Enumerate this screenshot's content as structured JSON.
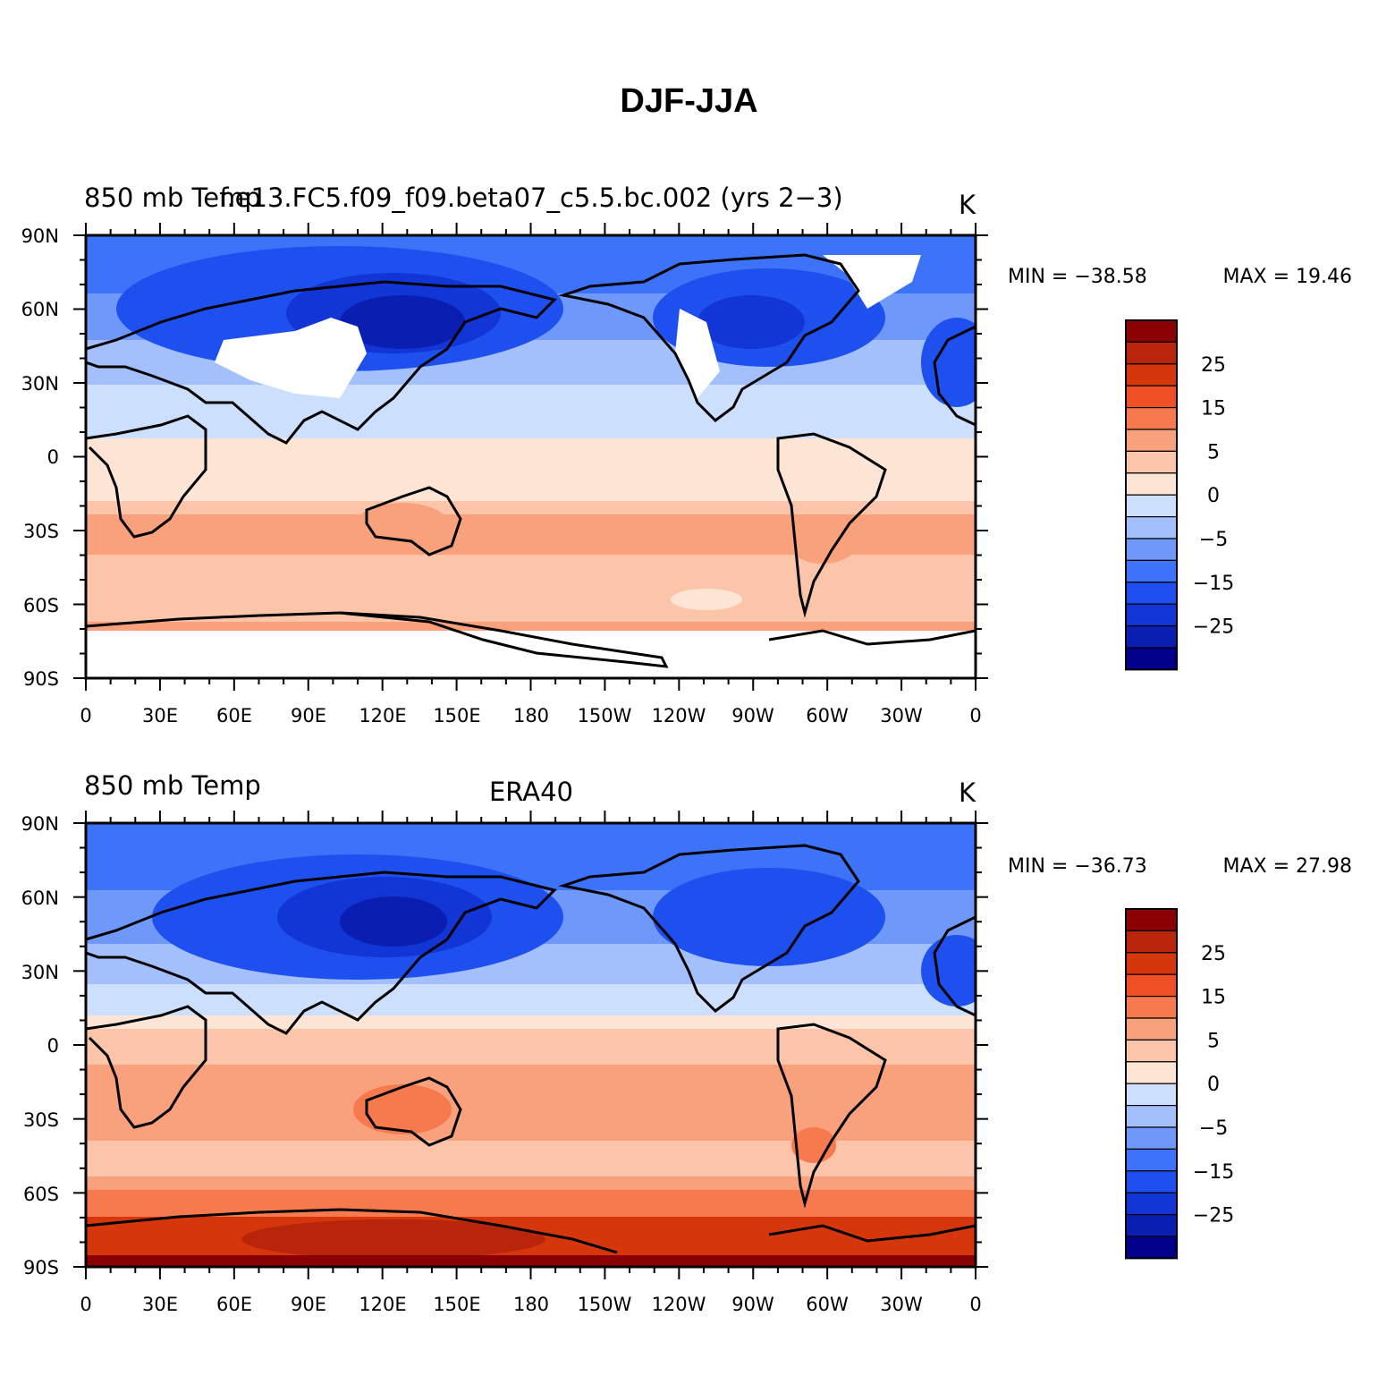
{
  "title": "DJF-JJA",
  "colorbar": {
    "colors": [
      "#00008B",
      "#0A1FB0",
      "#1235D6",
      "#1E50F0",
      "#3C73F8",
      "#6E98FA",
      "#A3C0FC",
      "#CCE0FD",
      "#FDE5D6",
      "#FCC4A8",
      "#F9A07C",
      "#F67A4E",
      "#F04F25",
      "#D6360C",
      "#B8250A",
      "#8B0000"
    ],
    "labels": [
      "25",
      "15",
      "5",
      "0",
      "−5",
      "−15",
      "−25"
    ]
  },
  "axes": {
    "lat_labels": [
      "90N",
      "60N",
      "30N",
      "0",
      "30S",
      "60S",
      "90S"
    ],
    "lon_labels": [
      "0",
      "30E",
      "60E",
      "90E",
      "120E",
      "150E",
      "180",
      "150W",
      "120W",
      "90W",
      "60W",
      "30W",
      "0"
    ]
  },
  "panels": [
    {
      "left_title": "850 mb Temp",
      "center_title": "f.e13.FC5.f09_f09.beta07_c5.5.bc.002 (yrs 2−3)",
      "units": "K",
      "min_label": "MIN = −38.58",
      "max_label": "MAX =   19.46",
      "min": -38.58,
      "max": 19.46
    },
    {
      "left_title": "850 mb Temp",
      "center_title": "ERA40",
      "units": "K",
      "min_label": "MIN = −36.73",
      "max_label": "MAX =   27.98",
      "min": -36.73,
      "max": 27.98
    }
  ]
}
